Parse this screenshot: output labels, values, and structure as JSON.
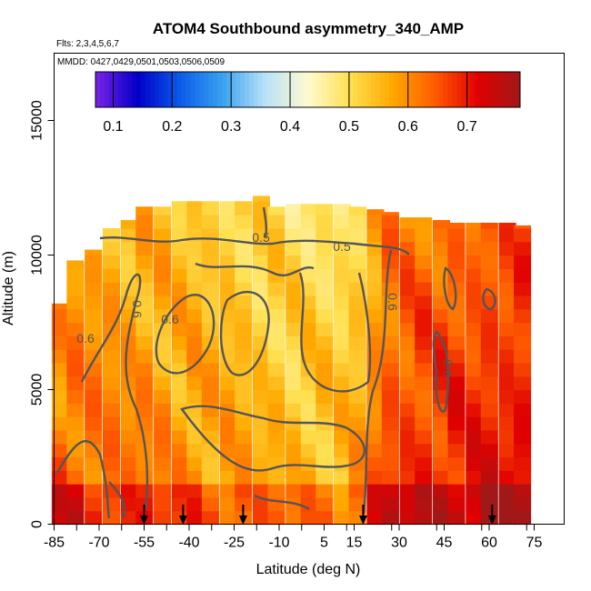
{
  "chart_data": {
    "type": "heatmap",
    "title": "ATOM4 Southbound asymmetry_340_AMP",
    "flights_note": "Flts: 2,3,4,5,6,7",
    "dates_note": "MMDD: 0427,0429,0501,0503,0506,0509",
    "xlabel": "Latitude (deg N)",
    "ylabel": "Altitude (m)",
    "xlim": [
      -85,
      85
    ],
    "ylim": [
      0,
      17500
    ],
    "x_ticks": [
      -85,
      -70,
      -55,
      -40,
      -25,
      -10,
      5,
      15,
      30,
      45,
      60,
      75
    ],
    "y_ticks": [
      0,
      5000,
      10000,
      15000
    ],
    "colorbar": {
      "min": 0.07,
      "max": 0.79,
      "ticks": [
        0.1,
        0.2,
        0.3,
        0.4,
        0.5,
        0.6,
        0.7
      ],
      "colors": [
        "#7a22e8",
        "#0000c8",
        "#0a5ce8",
        "#3aa2f0",
        "#b8e2f8",
        "#fffad0",
        "#ffe050",
        "#ffa800",
        "#ff5a00",
        "#e00000",
        "#a01818"
      ]
    },
    "contour_labels": [
      "0.5",
      "0.5",
      "0.6",
      "0.6",
      "0.6",
      "0.6",
      "0.6"
    ],
    "arrow_latitudes": [
      -55,
      -42,
      -22,
      18,
      61
    ],
    "profiles": [
      {
        "lat": -83,
        "top": 8200,
        "base": 0.62
      },
      {
        "lat": -78,
        "top": 9800,
        "base": 0.62
      },
      {
        "lat": -72,
        "top": 10200,
        "base": 0.61
      },
      {
        "lat": -66,
        "top": 11000,
        "base": 0.6
      },
      {
        "lat": -60,
        "top": 11300,
        "base": 0.59
      },
      {
        "lat": -55,
        "top": 11800,
        "base": 0.59
      },
      {
        "lat": -49,
        "top": 11800,
        "base": 0.58
      },
      {
        "lat": -43,
        "top": 12000,
        "base": 0.57
      },
      {
        "lat": -38,
        "top": 12000,
        "base": 0.57
      },
      {
        "lat": -33,
        "top": 12000,
        "base": 0.56
      },
      {
        "lat": -27,
        "top": 12000,
        "base": 0.56
      },
      {
        "lat": -22,
        "top": 12000,
        "base": 0.55
      },
      {
        "lat": -16,
        "top": 12200,
        "base": 0.54
      },
      {
        "lat": -11,
        "top": 11800,
        "base": 0.54
      },
      {
        "lat": -5,
        "top": 11900,
        "base": 0.53
      },
      {
        "lat": 0,
        "top": 11900,
        "base": 0.53
      },
      {
        "lat": 5,
        "top": 11900,
        "base": 0.53
      },
      {
        "lat": 11,
        "top": 11900,
        "base": 0.53
      },
      {
        "lat": 16,
        "top": 11800,
        "base": 0.55
      },
      {
        "lat": 22,
        "top": 11700,
        "base": 0.6
      },
      {
        "lat": 27,
        "top": 11600,
        "base": 0.64
      },
      {
        "lat": 33,
        "top": 11400,
        "base": 0.65
      },
      {
        "lat": 38,
        "top": 11400,
        "base": 0.66
      },
      {
        "lat": 44,
        "top": 11300,
        "base": 0.66
      },
      {
        "lat": 49,
        "top": 11200,
        "base": 0.67
      },
      {
        "lat": 55,
        "top": 11200,
        "base": 0.67
      },
      {
        "lat": 60,
        "top": 11200,
        "base": 0.68
      },
      {
        "lat": 66,
        "top": 11200,
        "base": 0.68
      },
      {
        "lat": 71,
        "top": 11100,
        "base": 0.69
      }
    ]
  }
}
